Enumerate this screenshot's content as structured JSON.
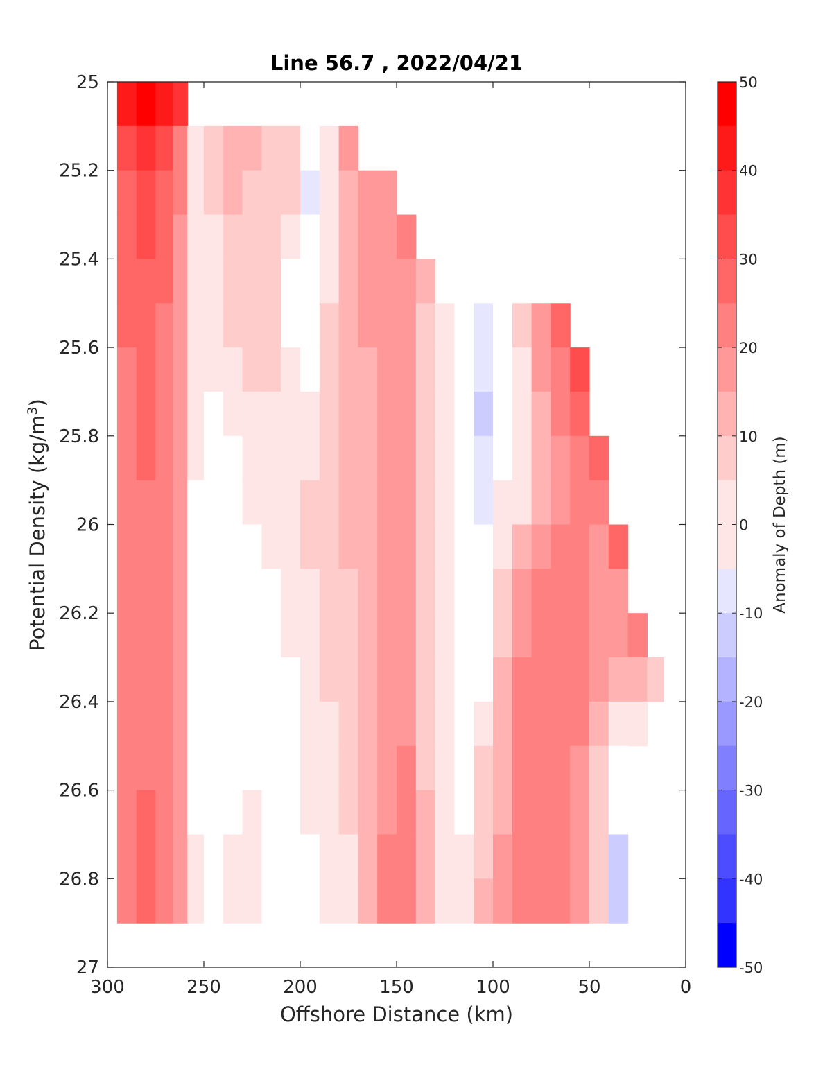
{
  "chart_data": {
    "type": "heatmap",
    "title": "Line 56.7 , 2022/04/21",
    "xlabel": "Offshore Distance (km)",
    "ylabel_main": "Potential Density (kg/m",
    "ylabel_sup": "3",
    "ylabel_close": ")",
    "xlim": [
      300,
      0
    ],
    "ylim": [
      25,
      27
    ],
    "x_reversed": true,
    "y_reversed": true,
    "x_ticks": [
      300,
      250,
      200,
      150,
      100,
      50,
      0
    ],
    "x_tick_labels": [
      "300",
      "250",
      "200",
      "150",
      "100",
      "50",
      "0"
    ],
    "y_ticks": [
      25,
      25.2,
      25.4,
      25.6,
      25.8,
      26,
      26.2,
      26.4,
      26.6,
      26.8,
      27
    ],
    "y_tick_labels": [
      "25",
      "25.2",
      "25.4",
      "25.6",
      "25.8",
      "26",
      "26.2",
      "26.4",
      "26.6",
      "26.8",
      "27"
    ],
    "colorbar": {
      "label": "Anomaly of Depth (m)",
      "range": [
        -50,
        50
      ],
      "ticks": [
        50,
        40,
        30,
        20,
        10,
        0,
        -10,
        -20,
        -30,
        -40,
        -50
      ],
      "tick_labels": [
        "50",
        "40",
        "30",
        "20",
        "10",
        "0",
        "-10",
        "-20",
        "-30",
        "-40",
        "-50"
      ],
      "levels": [
        -50,
        -45,
        -40,
        -35,
        -30,
        -25,
        -20,
        -15,
        -10,
        -5,
        5,
        10,
        15,
        20,
        25,
        30,
        35,
        40,
        45,
        50
      ],
      "colors_high_to_low": [
        "#ff0000",
        "#ff1a1a",
        "#ff3333",
        "#ff4d4d",
        "#ff6666",
        "#ff8080",
        "#ff9999",
        "#ffb3b3",
        "#ffcccc",
        "#ffe6e6",
        "#ffffff",
        "#e6e6ff",
        "#ccccff",
        "#b3b3ff",
        "#9999ff",
        "#8080ff",
        "#6666ff",
        "#4d4dff",
        "#3333ff",
        "#1a1aff",
        "#0000ff"
      ]
    },
    "x": [
      290,
      280,
      270,
      262,
      255,
      245,
      235,
      225,
      215,
      205,
      195,
      185,
      175,
      165,
      155,
      145,
      135,
      125,
      115,
      105,
      95,
      85,
      75,
      65,
      55,
      45,
      35,
      25,
      15,
      8
    ],
    "y": [
      25.0,
      25.1,
      25.2,
      25.3,
      25.4,
      25.5,
      25.6,
      25.7,
      25.8,
      25.9,
      26.0,
      26.1,
      26.2,
      26.3,
      26.4,
      26.5,
      26.6,
      26.7,
      26.8,
      26.9
    ],
    "top_density": [
      25.0,
      25.0,
      25.0,
      25.0,
      25.1,
      25.1,
      25.1,
      25.1,
      25.1,
      25.1,
      25.1,
      25.1,
      25.1,
      25.2,
      25.2,
      25.3,
      25.4,
      25.5,
      25.5,
      25.5,
      25.5,
      25.5,
      25.5,
      25.5,
      25.6,
      25.8,
      26.0,
      26.2,
      26.3,
      26.3
    ],
    "bottom_density": [
      26.9,
      26.9,
      26.9,
      26.9,
      26.9,
      26.9,
      26.9,
      26.9,
      26.9,
      26.9,
      26.9,
      26.9,
      26.9,
      26.9,
      26.9,
      26.9,
      26.9,
      26.9,
      26.9,
      26.9,
      26.9,
      26.9,
      26.9,
      26.9,
      26.9,
      26.9,
      26.9,
      26.5,
      26.4,
      26.3
    ],
    "values": [
      [
        48,
        35,
        33,
        32,
        31,
        30,
        29,
        28,
        28,
        28,
        28,
        28,
        27,
        25,
        25,
        26,
        28,
        29,
        29,
        29
      ],
      [
        50,
        40,
        38,
        36,
        34,
        32,
        31,
        30,
        30,
        29,
        29,
        29,
        28,
        27,
        28,
        29,
        30,
        31,
        30,
        29
      ],
      [
        46,
        35,
        33,
        31,
        30,
        29,
        28,
        27,
        27,
        27,
        27,
        27,
        26,
        26,
        27,
        28,
        28,
        27,
        27,
        26
      ],
      [
        42,
        26,
        25,
        23,
        22,
        21,
        20,
        20,
        20,
        20,
        20,
        20,
        20,
        20,
        21,
        21,
        21,
        20,
        20,
        19
      ],
      [
        10,
        9,
        9,
        8,
        7,
        7,
        7,
        6,
        5,
        4,
        4,
        3,
        3,
        3,
        3,
        3,
        4,
        5,
        5,
        5
      ],
      [
        12,
        12,
        11,
        9,
        8,
        8,
        6,
        4,
        2,
        1,
        1,
        1,
        1,
        1,
        1,
        1,
        2,
        2,
        2,
        3
      ],
      [
        16,
        16,
        15,
        12,
        11,
        10,
        9,
        7,
        4,
        2,
        1,
        1,
        1,
        1,
        1,
        2,
        4,
        6,
        6,
        4
      ],
      [
        18,
        18,
        14,
        14,
        12,
        11,
        10,
        9,
        7,
        5,
        3,
        2,
        2,
        2,
        2,
        4,
        7,
        9,
        6,
        4
      ],
      [
        14,
        14,
        14,
        12,
        11,
        10,
        10,
        9,
        8,
        7,
        6,
        4,
        3,
        3,
        3,
        3,
        4,
        3,
        3,
        3
      ],
      [
        10,
        10,
        10,
        8,
        4,
        4,
        8,
        9,
        9,
        9,
        8,
        7,
        6,
        4,
        3,
        2,
        2,
        2,
        2,
        2
      ],
      [
        3,
        3,
        -6,
        -4,
        -3,
        -1,
        4,
        7,
        9,
        10,
        10,
        9,
        8,
        7,
        7,
        6,
        5,
        4,
        3,
        3
      ],
      [
        6,
        6,
        6,
        5,
        8,
        11,
        12,
        12,
        12,
        12,
        12,
        12,
        11,
        10,
        9,
        8,
        7,
        6,
        5,
        4
      ],
      [
        20,
        20,
        18,
        17,
        16,
        15,
        15,
        15,
        15,
        15,
        15,
        14,
        14,
        13,
        12,
        11,
        10,
        9,
        8,
        8
      ],
      [
        25,
        25,
        22,
        21,
        20,
        20,
        19,
        18,
        18,
        18,
        18,
        18,
        18,
        18,
        18,
        18,
        17,
        17,
        16,
        16
      ],
      [
        24,
        24,
        22,
        21,
        21,
        20,
        20,
        20,
        20,
        21,
        21,
        21,
        21,
        21,
        22,
        23,
        24,
        25,
        25,
        24
      ],
      [
        32,
        32,
        27,
        25,
        24,
        23,
        22,
        22,
        22,
        22,
        22,
        22,
        22,
        22,
        23,
        25,
        27,
        28,
        29,
        28
      ],
      [
        28,
        28,
        22,
        18,
        16,
        14,
        13,
        13,
        13,
        13,
        13,
        13,
        12,
        12,
        13,
        14,
        15,
        15,
        15,
        15
      ],
      [
        8,
        8,
        8,
        8,
        8,
        8,
        8,
        8,
        8,
        8,
        8,
        7,
        6,
        6,
        5,
        5,
        5,
        5,
        5,
        5
      ],
      [
        0,
        0,
        0,
        0,
        0,
        0,
        0,
        0,
        -2,
        -2,
        0,
        0,
        0,
        0,
        0,
        0,
        0,
        5,
        6,
        6
      ],
      [
        2,
        2,
        2,
        2,
        -7,
        -7,
        -8,
        -12,
        -8,
        -8,
        -4,
        -2,
        4,
        4,
        8,
        10,
        12,
        14,
        15,
        15
      ],
      [
        2,
        2,
        2,
        2,
        -3,
        -2,
        -1,
        -1,
        0,
        6,
        8,
        12,
        14,
        16,
        17,
        18,
        19,
        20,
        20,
        20
      ],
      [
        12,
        12,
        12,
        12,
        14,
        10,
        7,
        5,
        5,
        8,
        15,
        20,
        23,
        26,
        26,
        26,
        27,
        27,
        27,
        27
      ],
      [
        26,
        26,
        26,
        26,
        26,
        24,
        20,
        18,
        16,
        18,
        22,
        25,
        27,
        29,
        29,
        28,
        28,
        27,
        27,
        27
      ],
      [
        32,
        32,
        32,
        32,
        32,
        30,
        27,
        25,
        24,
        24,
        25,
        26,
        27,
        28,
        28,
        27,
        26,
        25,
        25,
        24
      ],
      [
        38,
        38,
        38,
        38,
        38,
        38,
        36,
        30,
        28,
        26,
        26,
        26,
        26,
        26,
        25,
        24,
        22,
        21,
        20,
        20
      ],
      [
        40,
        40,
        40,
        40,
        40,
        40,
        40,
        40,
        33,
        28,
        24,
        23,
        22,
        20,
        16,
        14,
        13,
        12,
        12,
        12
      ],
      [
        40,
        40,
        40,
        40,
        40,
        40,
        40,
        40,
        40,
        40,
        30,
        22,
        20,
        15,
        8,
        2,
        -3,
        -12,
        -14,
        -8
      ],
      [
        40,
        40,
        40,
        40,
        40,
        40,
        40,
        40,
        40,
        40,
        40,
        40,
        26,
        18,
        8,
        0,
        0,
        0,
        0,
        0
      ],
      [
        20,
        20,
        20,
        20,
        20,
        20,
        20,
        20,
        20,
        20,
        20,
        20,
        20,
        14,
        2,
        -3,
        -3,
        -3,
        -3,
        -3
      ],
      [
        10,
        10,
        10,
        10,
        10,
        10,
        10,
        10,
        10,
        10,
        10,
        10,
        10,
        6,
        -8,
        -20,
        -20,
        -20,
        -20,
        -20
      ]
    ]
  }
}
